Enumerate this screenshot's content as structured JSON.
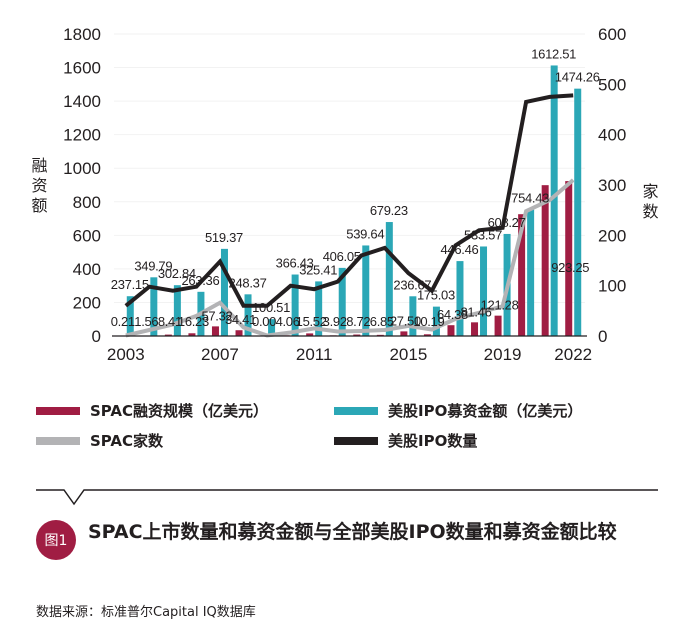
{
  "chart_data": {
    "type": "bar",
    "x": [
      2003,
      2004,
      2005,
      2006,
      2007,
      2008,
      2009,
      2010,
      2011,
      2012,
      2013,
      2014,
      2015,
      2016,
      2017,
      2018,
      2019,
      2020,
      2021,
      2022
    ],
    "x_tick_labels": [
      "2003",
      "2007",
      "2011",
      "2015",
      "2019",
      "2022"
    ],
    "ylabel": "融资额",
    "y2label": "家数",
    "ylim": [
      0,
      1800
    ],
    "y_ticks": [
      "0",
      "200",
      "400",
      "600",
      "800",
      "1000",
      "1200",
      "1400",
      "1600",
      "1800"
    ],
    "y2lim": [
      0,
      600
    ],
    "y2_ticks": [
      "0",
      "100",
      "200",
      "300",
      "400",
      "500",
      "600"
    ],
    "series": [
      {
        "name": "SPAC融资规模（亿美元）",
        "type": "bar",
        "axis": "left",
        "color": "#a01d43",
        "values": [
          0.21,
          1.56,
          8.41,
          16.23,
          57.32,
          34.41,
          0.0,
          4.06,
          15.52,
          3.92,
          8.72,
          6.85,
          27.5,
          10.19,
          64.38,
          81.46,
          121.28,
          726,
          899,
          923.25
        ],
        "labels": [
          "0.21",
          "1.56",
          "8.41",
          "16.23",
          "57.32",
          "34.41",
          "0.00",
          "4.06",
          "15.52",
          "3.92",
          "8.72",
          "6.85",
          "27.50",
          "10.19",
          "64.38",
          "81.46",
          "121.28",
          "",
          "",
          "923.25"
        ]
      },
      {
        "name": "美股IPO募资金额（亿美元）",
        "type": "bar",
        "axis": "left",
        "color": "#2ba7b6",
        "values": [
          237.15,
          349.79,
          302.84,
          263.36,
          519.37,
          248.37,
          100.51,
          366.43,
          325.41,
          406.05,
          539.64,
          679.23,
          236.67,
          175.03,
          446.46,
          533.57,
          608.27,
          754.43,
          1612.51,
          1474.26
        ],
        "labels": [
          "237.15",
          "349.79",
          "302.84",
          "263.36",
          "519.37",
          "248.37",
          "100.51",
          "366.43",
          "325.41",
          "406.05",
          "539.64",
          "679.23",
          "236.67",
          "175.03",
          "446.46",
          "533.57",
          "608.27",
          "754.43",
          "1612.51",
          "1474.26"
        ]
      },
      {
        "name": "SPAC家数",
        "type": "line",
        "axis": "right",
        "color": "#b3b3b5",
        "values": [
          1,
          12,
          23,
          40,
          66,
          17,
          1,
          7,
          15,
          9,
          10,
          12,
          20,
          13,
          34,
          46,
          59,
          248,
          270,
          310
        ]
      },
      {
        "name": "美股IPO数量",
        "type": "line",
        "axis": "right",
        "color": "#231f20",
        "values": [
          60,
          98,
          90,
          98,
          148,
          60,
          60,
          100,
          93,
          108,
          160,
          175,
          125,
          90,
          180,
          210,
          215,
          465,
          475,
          478
        ]
      }
    ]
  },
  "figure": {
    "badge": "图1",
    "title": "SPAC上市数量和募资金额与全部美股IPO数量和募资金额比较",
    "source": "数据来源：标准普尔Capital IQ数据库"
  }
}
